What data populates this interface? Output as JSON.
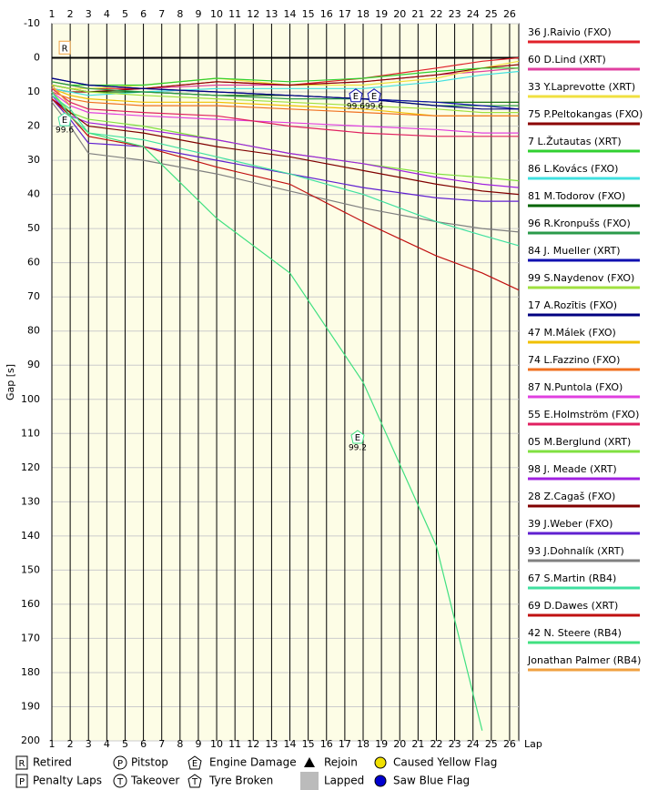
{
  "chart_data": {
    "type": "line",
    "y_label": "Gap [s]",
    "x_label": "Lap",
    "x": [
      1,
      2,
      3,
      6,
      10,
      14,
      18,
      22,
      24.5,
      26.5
    ],
    "xlim": [
      1,
      26.5
    ],
    "xticks": [
      1,
      2,
      3,
      4,
      5,
      6,
      7,
      8,
      9,
      10,
      11,
      12,
      13,
      14,
      15,
      16,
      17,
      18,
      19,
      20,
      21,
      22,
      23,
      24,
      25,
      26
    ],
    "ylim": [
      -10,
      200
    ],
    "y_reversed": true,
    "yticks": [
      -10,
      0,
      10,
      20,
      30,
      40,
      50,
      60,
      70,
      80,
      90,
      100,
      110,
      120,
      130,
      140,
      150,
      160,
      170,
      180,
      190,
      200
    ],
    "grid": true,
    "series": [
      {
        "name": "36 J.Raivio (FXO)",
        "color": "#e0202a",
        "values": [
          7,
          8,
          9,
          9,
          7,
          8,
          6,
          3,
          1,
          0
        ]
      },
      {
        "name": "60 D.Lind (XRT)",
        "color": "#e040a0",
        "values": [
          8,
          9,
          10,
          9,
          8,
          8,
          7,
          5,
          4,
          3
        ]
      },
      {
        "name": "33 Y.Laprevotte (XRT)",
        "color": "#f0e040",
        "values": [
          8,
          9,
          9,
          8,
          6,
          8,
          8,
          6,
          3,
          1
        ]
      },
      {
        "name": "75 P.Peltokangas (FXO)",
        "color": "#8b0000",
        "values": [
          9,
          10,
          10,
          9,
          7,
          8,
          7,
          5,
          3,
          2
        ]
      },
      {
        "name": "7 L.Žutautas (XRT)",
        "color": "#30d030",
        "values": [
          7,
          8,
          8,
          8,
          6,
          7,
          6,
          4,
          3,
          3
        ]
      },
      {
        "name": "86 L.Kovács (FXO)",
        "color": "#40e0e0",
        "values": [
          9,
          10,
          11,
          10,
          9,
          9,
          9,
          7,
          5,
          4
        ]
      },
      {
        "name": "81 M.Todorov (FXO)",
        "color": "#006400",
        "values": [
          8,
          9,
          10,
          10,
          11,
          11,
          12,
          13,
          13,
          13
        ]
      },
      {
        "name": "96 R.Kronpušs (FXO)",
        "color": "#2a9a4a",
        "values": [
          7,
          8,
          9,
          10,
          11,
          12,
          12,
          14,
          14,
          14
        ]
      },
      {
        "name": "84 J. Mueller (XRT)",
        "color": "#1010b0",
        "values": [
          6,
          7,
          8,
          9,
          10,
          11,
          12,
          13,
          14,
          15
        ]
      },
      {
        "name": "99 S.Naydenov (FXO)",
        "color": "#a0e040",
        "values": [
          8,
          9,
          10,
          11,
          12,
          13,
          14,
          15,
          16,
          16
        ]
      },
      {
        "name": "17 A.Rozītis (FXO)",
        "color": "#000080",
        "values": [
          6,
          7,
          8,
          9,
          10,
          11,
          12,
          14,
          15,
          15
        ]
      },
      {
        "name": "47 M.Málek (FXO)",
        "color": "#f0c000",
        "values": [
          9,
          11,
          12,
          13,
          13,
          14,
          15,
          17,
          17,
          17
        ]
      },
      {
        "name": "74 L.Fazzino (FXO)",
        "color": "#f07020",
        "values": [
          10,
          12,
          13,
          14,
          14,
          15,
          16,
          17,
          17,
          17
        ]
      },
      {
        "name": "87 N.Puntola (FXO)",
        "color": "#e040e0",
        "values": [
          10,
          14,
          16,
          17,
          18,
          19,
          20,
          21,
          22,
          22
        ]
      },
      {
        "name": "55 E.Holmström (FXO)",
        "color": "#e02060",
        "values": [
          9,
          13,
          15,
          16,
          17,
          20,
          22,
          23,
          23,
          23
        ]
      },
      {
        "name": "05 M.Berglund (XRT)",
        "color": "#80e040",
        "values": [
          10,
          16,
          18,
          20,
          24,
          28,
          31,
          34,
          35,
          36
        ]
      },
      {
        "name": "98 J. Meade (XRT)",
        "color": "#a020e0",
        "values": [
          11,
          17,
          19,
          21,
          24,
          28,
          31,
          35,
          37,
          38
        ]
      },
      {
        "name": "28 Z.Cagaš (FXO)",
        "color": "#800000",
        "values": [
          12,
          16,
          20,
          22,
          26,
          29,
          33,
          37,
          39,
          40
        ]
      },
      {
        "name": "39 J.Weber (FXO)",
        "color": "#6020d0",
        "values": [
          12,
          18,
          25,
          26,
          30,
          34,
          38,
          41,
          42,
          42
        ]
      },
      {
        "name": "93 J.Dohnalík (XRT)",
        "color": "#808080",
        "values": [
          13,
          20,
          28,
          30,
          34,
          39,
          44,
          48,
          50,
          51
        ]
      },
      {
        "name": "67 S.Martin (RB4)",
        "color": "#40e0a0",
        "values": [
          11,
          15,
          22,
          24,
          29,
          34,
          40,
          48,
          52,
          55
        ]
      },
      {
        "name": "69 D.Dawes (XRT)",
        "color": "#c01010",
        "values": [
          12,
          17,
          23,
          26,
          32,
          37,
          48,
          58,
          63,
          68
        ]
      },
      {
        "name": "42 N. Steere (RB4)",
        "color": "#40e080",
        "values": [
          10,
          17,
          22,
          26,
          47,
          63,
          95,
          143,
          197,
          null
        ]
      },
      {
        "name": "Jonathan Palmer (RB4)",
        "color": "#f0a040",
        "values": [
          8,
          14,
          null,
          null,
          null,
          null,
          null,
          null,
          null,
          null
        ]
      }
    ],
    "annotations": [
      {
        "symbol": "R",
        "shape": "square",
        "x": 1.7,
        "y": -3,
        "color": "#f0a040"
      },
      {
        "symbol": "E",
        "shape": "pentagon",
        "label": "99.6",
        "x": 1.7,
        "y": 18,
        "color": "#40e0a0"
      },
      {
        "symbol": "E",
        "shape": "pentagon",
        "label": "99.6",
        "x": 17.6,
        "y": 11,
        "color": "#1010b0"
      },
      {
        "symbol": "E",
        "shape": "pentagon",
        "label": "99.6",
        "x": 18.6,
        "y": 11,
        "color": "#1010b0"
      },
      {
        "symbol": "E",
        "shape": "pentagon",
        "label": "99.2",
        "x": 17.7,
        "y": 111,
        "color": "#40e080"
      }
    ],
    "legend_items": [
      {
        "symbol": "R",
        "shape": "square",
        "label": "Retired"
      },
      {
        "symbol": "P",
        "shape": "square",
        "label": "Penalty Laps"
      },
      {
        "symbol": "P",
        "shape": "circle",
        "label": "Pitstop"
      },
      {
        "symbol": "T",
        "shape": "circle",
        "label": "Takeover"
      },
      {
        "symbol": "E",
        "shape": "pentagon",
        "label": "Engine Damage"
      },
      {
        "symbol": "T",
        "shape": "pentagon",
        "label": "Tyre Broken"
      },
      {
        "shape": "triangle",
        "label": "Rejoin"
      },
      {
        "shape": "gray-square",
        "label": "Lapped"
      },
      {
        "shape": "yellow-dot",
        "label": "Caused Yellow Flag"
      },
      {
        "shape": "blue-dot",
        "label": "Saw Blue Flag"
      }
    ]
  }
}
